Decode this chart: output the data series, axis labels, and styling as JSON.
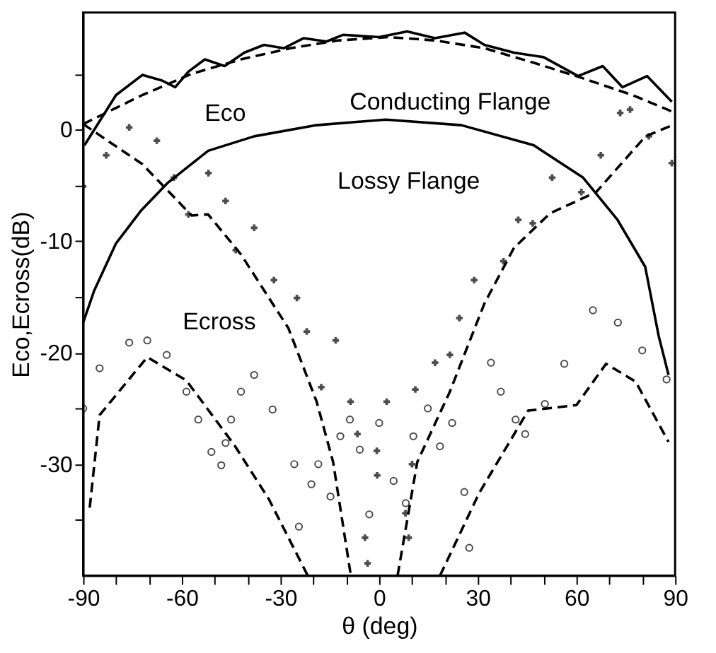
{
  "chart_data": {
    "type": "line",
    "xlabel": "θ (deg)",
    "ylabel": "Eco,Ecross(dB)",
    "xlim": [
      -90,
      90
    ],
    "ylim": [
      -40,
      10.5
    ],
    "xticks": [
      -90,
      {
        "value": -80,
        "label": null
      },
      {
        "value": -70,
        "label": null
      },
      -60,
      {
        "value": -50,
        "label": null
      },
      {
        "value": -40,
        "label": null
      },
      -30,
      {
        "value": -20,
        "label": null
      },
      {
        "value": -10,
        "label": null
      },
      0,
      {
        "value": 10,
        "label": null
      },
      {
        "value": 20,
        "label": null
      },
      30,
      {
        "value": 40,
        "label": null
      },
      {
        "value": 50,
        "label": null
      },
      60,
      {
        "value": 70,
        "label": null
      },
      {
        "value": 80,
        "label": null
      },
      90
    ],
    "yticks": [
      {
        "value": -35,
        "label": null
      },
      -30,
      {
        "value": -25,
        "label": null
      },
      -20,
      {
        "value": -15,
        "label": null
      },
      -10,
      {
        "value": -5,
        "label": null
      },
      0,
      {
        "value": 5,
        "label": null
      }
    ],
    "grid": false,
    "series": [
      {
        "color": "#000000",
        "line_style": "solid",
        "x": [
          -89.6,
          -80,
          -72,
          -66,
          -62,
          -58,
          -53,
          -47,
          -41,
          -35,
          -29,
          -23,
          -16,
          -11,
          0,
          8.5,
          17,
          26,
          32,
          41,
          50,
          60.5,
          68,
          74,
          81.5,
          89
        ],
        "values": [
          -1.4,
          3.1,
          4.9,
          4.4,
          3.8,
          5.2,
          6.3,
          5.7,
          6.9,
          7.6,
          7.3,
          8.2,
          7.9,
          8.5,
          8.3,
          8.8,
          8.2,
          8.7,
          7.6,
          6.9,
          6.5,
          4.8,
          5.7,
          3.8,
          4.8,
          2.5
        ]
      },
      {
        "color": "#000000",
        "line_style": "dashed",
        "x": [
          -90,
          -72,
          -57,
          -42,
          -27,
          -12.5,
          3,
          17,
          32,
          47,
          62,
          77,
          86,
          90
        ],
        "values": [
          0.5,
          3.1,
          5.0,
          6.3,
          7.3,
          8.0,
          8.3,
          8.0,
          7.3,
          6.0,
          4.6,
          3.1,
          2.0,
          1.5
        ]
      },
      {
        "color": "#000000",
        "line_style": "solid",
        "x": [
          -90,
          -86.6,
          -80,
          -72.5,
          -64.4,
          -52,
          -38,
          -19,
          2,
          25,
          47,
          62,
          72.5,
          80.9,
          85,
          88
        ],
        "values": [
          -17.3,
          -14.4,
          -10.2,
          -7.3,
          -4.8,
          -1.9,
          -0.6,
          0.4,
          0.9,
          0.4,
          -1.4,
          -4.3,
          -8.1,
          -12.3,
          -18.5,
          -22
        ]
      },
      {
        "type": "scatter",
        "color": "#000000",
        "marker": "cross",
        "x": [
          -90,
          -83,
          -76,
          -67.6,
          -62.4,
          -58,
          -51.9,
          -46.7,
          -43.6,
          -38,
          -32,
          -25,
          -22,
          -17.6,
          -13.2,
          -8.7,
          -6.6,
          -4.3,
          -3.5,
          -0.7,
          -0.6,
          2.3,
          8,
          9,
          10,
          11,
          17,
          21.5,
          24.4,
          28.9,
          37.8,
          42.3,
          46.7,
          52.6,
          61.5,
          67.4,
          73.3,
          76.3,
          82,
          89
        ],
        "values": [
          -5.1,
          -2.3,
          0.2,
          -1.0,
          -4.3,
          -7.6,
          -3.9,
          -6.4,
          -10.8,
          -8.8,
          -13.5,
          -15.1,
          -18.1,
          -23.1,
          -18.9,
          -24.4,
          -27.3,
          -36.6,
          -38.9,
          -28.8,
          -31,
          -24.4,
          -34.4,
          -36.6,
          -30,
          -23.3,
          -20.9,
          -20.2,
          -16.9,
          -13.5,
          -11.8,
          -8.1,
          -8.4,
          -4.3,
          -5.6,
          -2.3,
          1.5,
          1.8,
          -0.6,
          -3
        ]
      },
      {
        "type": "line",
        "color": "#000000",
        "line_style": "dashed",
        "x": [
          -90,
          -72,
          -57,
          -52,
          -42,
          -27.6,
          -19,
          -14,
          -8.6
        ],
        "values": [
          0.5,
          -3.1,
          -7.7,
          -7.6,
          -11.2,
          -17.8,
          -24.4,
          -29.8,
          -40
        ]
      },
      {
        "type": "line",
        "color": "#000000",
        "line_style": "dashed",
        "x": [
          5.6,
          11.6,
          21.5,
          32,
          41,
          52,
          66,
          81,
          90
        ],
        "values": [
          -40,
          -29.8,
          -23.5,
          -15.6,
          -10.6,
          -7.5,
          -5.6,
          -0.6,
          0.5
        ]
      },
      {
        "type": "scatter",
        "color": "#000000",
        "marker": "circle",
        "x": [
          -90,
          -85,
          -76,
          -70.5,
          -64.6,
          -58.6,
          -55,
          -51,
          -48,
          -46.7,
          -45,
          -42,
          -38,
          -32.4,
          -25.8,
          -24.4,
          -20.6,
          -18.5,
          -14.8,
          -11.8,
          -8.9,
          -5.9,
          -3,
          0,
          4.4,
          8.1,
          10.4,
          14.8,
          18.5,
          22.2,
          25.9,
          27.4,
          34,
          37,
          41.5,
          44.4,
          50.4,
          56.3,
          65,
          72.6,
          80,
          87.4
        ],
        "values": [
          -25,
          -21.4,
          -19.1,
          -18.9,
          -20.2,
          -23.5,
          -26,
          -28.9,
          -30.1,
          -28.1,
          -26,
          -23.5,
          -22,
          -25.1,
          -30,
          -35.6,
          -31.8,
          -30,
          -32.9,
          -27.5,
          -26,
          -28.7,
          -34.5,
          -26.3,
          -31.5,
          -33.5,
          -27.5,
          -25,
          -28.4,
          -26.3,
          -32.5,
          -37.5,
          -20.9,
          -23.5,
          -26,
          -27.3,
          -24.6,
          -21,
          -16.2,
          -17.3,
          -19.8,
          -22.4
        ]
      },
      {
        "type": "line",
        "color": "#000000",
        "line_style": "dashed",
        "x": [
          -88,
          -85,
          -70.5,
          -58.6,
          -44,
          -33.6,
          -21.7
        ],
        "values": [
          -33.9,
          -25.6,
          -20.4,
          -22.5,
          -28.3,
          -33.1,
          -40
        ]
      },
      {
        "type": "line",
        "color": "#000000",
        "line_style": "dashed",
        "x": [
          18.5,
          30.4,
          45.3,
          60,
          69,
          78,
          88
        ],
        "values": [
          -40,
          -32.6,
          -25.2,
          -24.7,
          -21,
          -22.6,
          -28
        ]
      }
    ],
    "annotations": [
      "Eco",
      "Conducting Flange",
      "Lossy Flange",
      "Ecross"
    ]
  }
}
